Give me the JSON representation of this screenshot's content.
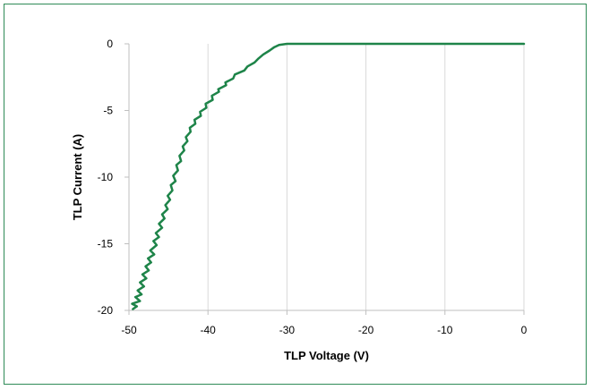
{
  "chart_data": {
    "type": "line",
    "xlabel": "TLP Voltage (V)",
    "ylabel": "TLP Current (A)",
    "xlim": [
      -50,
      0
    ],
    "ylim": [
      -20,
      0
    ],
    "xticks": [
      -50,
      -40,
      -30,
      -20,
      -10,
      0
    ],
    "yticks": [
      0,
      -5,
      -10,
      -15,
      -20
    ],
    "grid": "vertical",
    "legend": "none",
    "colors": {
      "series": "#1e8449",
      "frame": "#2e8b57"
    },
    "series": [
      {
        "x": [
          -49.5,
          -49.0,
          -49.6,
          -48.6,
          -49.2,
          -48.4,
          -48.9,
          -48.1,
          -48.6,
          -47.8,
          -48.3,
          -47.5,
          -47.9,
          -47.2,
          -47.6,
          -46.8,
          -47.3,
          -46.5,
          -46.9,
          -46.2,
          -46.6,
          -45.8,
          -46.2,
          -45.5,
          -45.8,
          -45.1,
          -45.4,
          -44.8,
          -45.1,
          -44.5,
          -44.7,
          -44.1,
          -44.4,
          -43.8,
          -44.0,
          -43.4,
          -43.6,
          -43.0,
          -43.2,
          -42.6,
          -42.8,
          -42.2,
          -42.3,
          -41.6,
          -41.7,
          -40.9,
          -41.0,
          -40.2,
          -40.3,
          -39.4,
          -39.5,
          -38.6,
          -38.7,
          -37.7,
          -37.8,
          -36.8,
          -36.6,
          -35.4,
          -35.0,
          -34.1,
          -33.6,
          -33.0,
          -32.2,
          -31.6,
          -31.0,
          -30.0,
          -25.0,
          -15.0,
          -5.0,
          0.0
        ],
        "y": [
          -19.9,
          -19.7,
          -19.5,
          -19.3,
          -19.0,
          -18.8,
          -18.5,
          -18.2,
          -17.9,
          -17.6,
          -17.3,
          -17.0,
          -16.7,
          -16.4,
          -16.1,
          -15.8,
          -15.5,
          -15.1,
          -14.8,
          -14.5,
          -14.2,
          -13.8,
          -13.5,
          -13.1,
          -12.8,
          -12.4,
          -12.1,
          -11.7,
          -11.4,
          -11.0,
          -10.6,
          -10.3,
          -9.9,
          -9.5,
          -9.1,
          -8.8,
          -8.4,
          -8.0,
          -7.7,
          -7.3,
          -7.0,
          -6.6,
          -6.3,
          -6.0,
          -5.7,
          -5.4,
          -5.1,
          -4.8,
          -4.5,
          -4.2,
          -3.9,
          -3.6,
          -3.4,
          -3.1,
          -2.9,
          -2.6,
          -2.3,
          -2.0,
          -1.7,
          -1.4,
          -1.1,
          -0.8,
          -0.5,
          -0.25,
          -0.08,
          0.0,
          0.0,
          0.0,
          0.0,
          0.0
        ]
      }
    ]
  }
}
